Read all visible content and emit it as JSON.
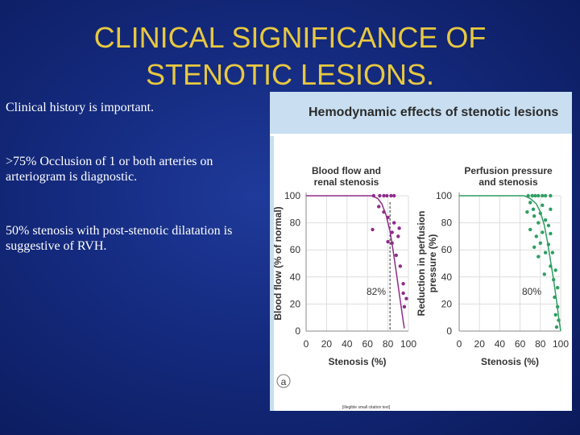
{
  "title": {
    "line1": "CLINICAL SIGNIFICANCE OF",
    "line2": "STENOTIC LESIONS."
  },
  "bullets": [
    "Clinical history is important.",
    ">75% Occlusion of 1 or both arteries on arteriogram is diagnostic.",
    "50% stenosis with post-stenotic dilatation is suggestive of RVH."
  ],
  "figure": {
    "title": "Hemodynamic effects of stenotic lesions",
    "panel_label": "a",
    "citation": "[illegible small citation text]",
    "colors": {
      "header_bg": "#c9dff1",
      "left_series": "#8e2c8a",
      "right_series": "#2e9e62",
      "title_text": "#e8c840"
    }
  },
  "chart_data": [
    {
      "type": "scatter",
      "title": "Blood flow and renal stenosis",
      "title_lines": [
        "Blood flow and",
        "renal stenosis"
      ],
      "xlabel": "Stenosis (%)",
      "ylabel": "Blood flow (% of normal)",
      "ylabel_lines": [
        "Blood flow (% of normal)"
      ],
      "xlim": [
        0,
        100
      ],
      "ylim": [
        0,
        100
      ],
      "xticks": [
        "0",
        "20",
        "40",
        "60",
        "80",
        "100"
      ],
      "yticks": [
        "0",
        "20",
        "40",
        "60",
        "80",
        "100"
      ],
      "annotation": "82%",
      "threshold_x": 82,
      "color": "#8e2c8a",
      "series": [
        {
          "points": [
            [
              66,
              100
            ],
            [
              72,
              100
            ],
            [
              76,
              100
            ],
            [
              79,
              100
            ],
            [
              83,
              100
            ],
            [
              86,
              100
            ],
            [
              71,
              92
            ],
            [
              76,
              88
            ],
            [
              80,
              84
            ],
            [
              86,
              80
            ],
            [
              65,
              75
            ],
            [
              84,
              73
            ],
            [
              91,
              76
            ],
            [
              90,
              70
            ],
            [
              80,
              66
            ],
            [
              84,
              65
            ],
            [
              88,
              56
            ],
            [
              92,
              48
            ],
            [
              95,
              35
            ],
            [
              95,
              28
            ],
            [
              98,
              24
            ],
            [
              96,
              18
            ]
          ]
        },
        {
          "curve": [
            [
              0,
              100
            ],
            [
              64,
              100
            ],
            [
              70,
              98
            ],
            [
              74,
              94
            ],
            [
              78,
              86
            ],
            [
              82,
              74
            ],
            [
              85,
              60
            ],
            [
              88,
              44
            ],
            [
              91,
              28
            ],
            [
              94,
              12
            ],
            [
              96,
              2
            ]
          ]
        }
      ]
    },
    {
      "type": "scatter",
      "title": "Perfusion pressure and stenosis",
      "title_lines": [
        "Perfusion pressure",
        "and stenosis"
      ],
      "xlabel": "Stenosis (%)",
      "ylabel": "Reduction in perfusion pressure (%)",
      "ylabel_lines": [
        "Reduction in perfusion",
        "pressure (%)"
      ],
      "xlim": [
        0,
        100
      ],
      "ylim": [
        0,
        100
      ],
      "xticks": [
        "0",
        "20",
        "40",
        "60",
        "80",
        "100"
      ],
      "yticks": [
        "0",
        "20",
        "40",
        "60",
        "80",
        "100"
      ],
      "annotation": "80%",
      "color": "#2e9e62",
      "series": [
        {
          "points": [
            [
              68,
              100
            ],
            [
              72,
              100
            ],
            [
              75,
              100
            ],
            [
              78,
              100
            ],
            [
              82,
              100
            ],
            [
              85,
              100
            ],
            [
              90,
              100
            ],
            [
              70,
              95
            ],
            [
              82,
              93
            ],
            [
              73,
              90
            ],
            [
              80,
              87
            ],
            [
              67,
              88
            ],
            [
              90,
              90
            ],
            [
              74,
              85
            ],
            [
              85,
              82
            ],
            [
              78,
              80
            ],
            [
              88,
              78
            ],
            [
              70,
              75
            ],
            [
              82,
              73
            ],
            [
              76,
              70
            ],
            [
              90,
              72
            ],
            [
              80,
              65
            ],
            [
              88,
              64
            ],
            [
              74,
              62
            ],
            [
              85,
              58
            ],
            [
              92,
              58
            ],
            [
              78,
              55
            ],
            [
              90,
              48
            ],
            [
              95,
              45
            ],
            [
              84,
              42
            ],
            [
              93,
              38
            ],
            [
              97,
              32
            ],
            [
              94,
              25
            ],
            [
              97,
              18
            ],
            [
              95,
              12
            ],
            [
              98,
              8
            ],
            [
              96,
              3
            ]
          ]
        },
        {
          "curve": [
            [
              0,
              100
            ],
            [
              64,
              100
            ],
            [
              70,
              98
            ],
            [
              76,
              94
            ],
            [
              80,
              88
            ],
            [
              84,
              78
            ],
            [
              87,
              66
            ],
            [
              90,
              52
            ],
            [
              93,
              38
            ],
            [
              96,
              22
            ],
            [
              98,
              10
            ],
            [
              100,
              0
            ]
          ]
        }
      ]
    }
  ]
}
